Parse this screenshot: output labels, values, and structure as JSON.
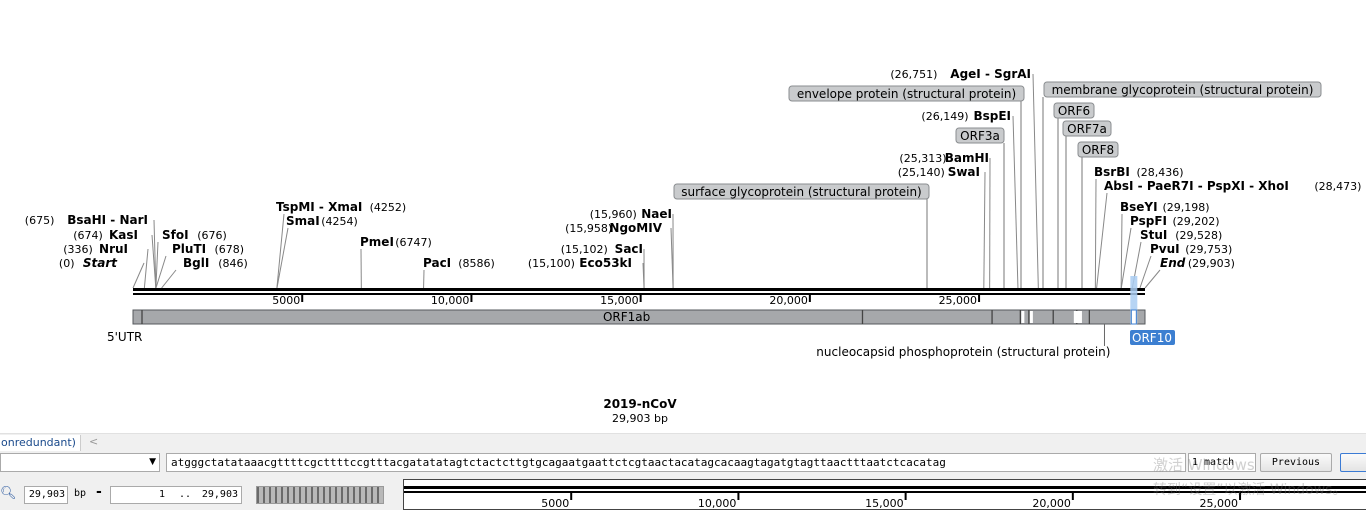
{
  "map": {
    "title": "2019-nCoV",
    "length_label": "29,903 bp",
    "seq_length": 29903,
    "ticks": [
      {
        "pos": 5000,
        "label": "5000"
      },
      {
        "pos": 10000,
        "label": "10,000"
      },
      {
        "pos": 15000,
        "label": "15,000"
      },
      {
        "pos": 20000,
        "label": "20,000"
      },
      {
        "pos": 25000,
        "label": "25,000"
      }
    ],
    "features": [
      {
        "label": "ORF1ab",
        "start": 0,
        "end": 29903,
        "type": "bar"
      },
      {
        "label": "5'UTR",
        "start": 0,
        "end": 265,
        "type": "below"
      },
      {
        "label": "nucleocapsid phosphoprotein (structural protein)",
        "start": 28274,
        "end": 29533,
        "type": "below-right"
      },
      {
        "label": "ORF10",
        "start": 29558,
        "end": 29674,
        "type": "selected"
      }
    ],
    "feature_labels_above": [
      {
        "label": "surface glycoprotein (structural protein)",
        "pos": 21563
      },
      {
        "label": "ORF3a",
        "pos": 25393
      },
      {
        "label": "envelope protein (structural protein)",
        "pos": 26245
      },
      {
        "label": "membrane glycoprotein (structural protein)",
        "pos": 26523
      },
      {
        "label": "ORF6",
        "pos": 27202
      },
      {
        "label": "ORF7a",
        "pos": 27394
      },
      {
        "label": "ORF8",
        "pos": 27894
      }
    ],
    "sites_left": [
      {
        "pos_label": "(675)",
        "name": "BsaHI - NarI",
        "pos": 675
      },
      {
        "pos_label": "(674)",
        "name": "KasI",
        "pos": 674
      },
      {
        "pos_label": "(336)",
        "name": "NruI",
        "pos": 336
      },
      {
        "pos_label": "(0)",
        "name": "Start",
        "pos": 0,
        "italic": true
      },
      {
        "pos_label": "(15,960)",
        "name": "NaeI",
        "pos": 15960
      },
      {
        "pos_label": "(15,958)",
        "name": "NgoMIV",
        "pos": 15958
      },
      {
        "pos_label": "(15,102)",
        "name": "SacI",
        "pos": 15102
      },
      {
        "pos_label": "(15,100)",
        "name": "Eco53kI",
        "pos": 15100
      },
      {
        "pos_label": "(26,751)",
        "name": "AgeI - SgrAI",
        "pos": 26751
      },
      {
        "pos_label": "(26,149)",
        "name": "BspEI",
        "pos": 26149
      },
      {
        "pos_label": "(25,313)",
        "name": "BamHI",
        "pos": 25313
      },
      {
        "pos_label": "(25,140)",
        "name": "SwaI",
        "pos": 25140
      }
    ],
    "sites_right": [
      {
        "name": "SfoI",
        "pos_label": "(676)",
        "pos": 676
      },
      {
        "name": "PluTI",
        "pos_label": "(678)",
        "pos": 678
      },
      {
        "name": "BglI",
        "pos_label": "(846)",
        "pos": 846
      },
      {
        "name": "TspMI - XmaI",
        "pos_label": "(4252)",
        "pos": 4252
      },
      {
        "name": "SmaI",
        "pos_label": "(4254)",
        "pos": 4254
      },
      {
        "name": "PmeI",
        "pos_label": "(6747)",
        "pos": 6747
      },
      {
        "name": "PacI",
        "pos_label": "(8586)",
        "pos": 8586
      },
      {
        "name": "BsrBI",
        "pos_label": "(28,436)",
        "pos": 28436
      },
      {
        "name": "AbsI - PaeR7I - PspXI - XhoI",
        "pos_label": "(28,473)",
        "pos": 28473
      },
      {
        "name": "BseYI",
        "pos_label": "(29,198)",
        "pos": 29198
      },
      {
        "name": "PspFI",
        "pos_label": "(29,202)",
        "pos": 29202
      },
      {
        "name": "StuI",
        "pos_label": "(29,528)",
        "pos": 29528
      },
      {
        "name": "PvuI",
        "pos_label": "(29,753)",
        "pos": 29753
      },
      {
        "name": "End",
        "pos_label": "(29,903)",
        "pos": 29903,
        "italic": true
      }
    ]
  },
  "tabs": {
    "active": "onredundant)",
    "arrow": "<"
  },
  "search": {
    "sequence": "atgggctatataaacgttttcgcttttccgtttacgatatatagtctactcttgtgcagaatgaattctcgtaactacatagcacaagtagatgtagttaactttaatctcacatag",
    "match_count": "1 match",
    "previous_label": "Previous"
  },
  "nav": {
    "length_value": "29,903",
    "unit": "bp",
    "range_start": "1",
    "range_sep": "..",
    "range_end": "29,903",
    "minimap_ticks": [
      "5000",
      "10,000",
      "15,000",
      "20,000",
      "25,000"
    ]
  },
  "watermark": {
    "line1": "激活 Windows",
    "line2": "转到“设置”以激活 Windows。"
  }
}
